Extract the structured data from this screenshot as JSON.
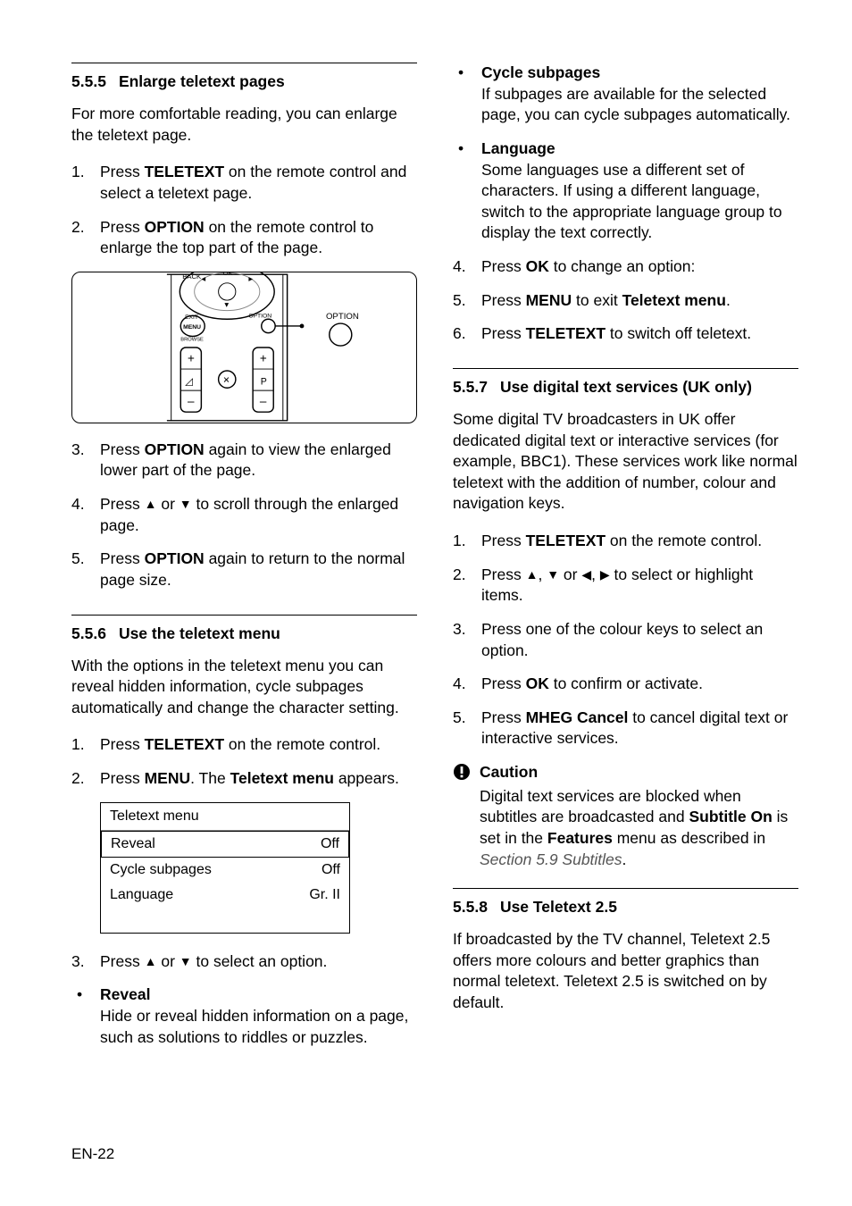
{
  "col_left": {
    "sec555": {
      "num": "5.5.5",
      "title": "Enlarge teletext pages",
      "intro": "For more comfortable reading, you can enlarge the teletext page.",
      "steps_a": [
        "Press <b>TELETEXT</b> on the remote control and select a teletext page.",
        "Press <b>OPTION</b> on the remote control to enlarge the top part of the page."
      ],
      "steps_b": [
        "Press <b>OPTION</b> again to view the enlarged lower part of the page.",
        "Press <span class='tri'>▲</span> or <span class='tri'>▼</span> to scroll through the enlarged page.",
        "Press <b>OPTION</b> again to return to the normal page size."
      ],
      "diagram": {
        "labels": {
          "back": "BACK",
          "ok": "OK",
          "exit": "EXIT",
          "menu": "MENU",
          "browse": "BROWSE",
          "option_small": "OPTION",
          "option_big": "OPTION",
          "p": "P",
          "mute": "✕"
        }
      }
    },
    "sec556": {
      "num": "5.5.6",
      "title": "Use the teletext menu",
      "intro": "With the options in the teletext menu you can reveal hidden information, cycle subpages automatically and change the character setting.",
      "steps": [
        "Press <b>TELETEXT</b> on the remote control.",
        "Press <b>MENU</b>. The <b>Teletext menu</b> appears."
      ],
      "menu": {
        "title": "Teletext menu",
        "rows": [
          {
            "label": "Reveal",
            "value": "Off",
            "selected": true
          },
          {
            "label": "Cycle subpages",
            "value": "Off",
            "selected": false
          },
          {
            "label": "Language",
            "value": "Gr. II",
            "selected": false
          }
        ]
      },
      "step3": "Press <span class='tri'>▲</span> or <span class='tri'>▼</span> to select an option.",
      "bullet_reveal": {
        "title": "Reveal",
        "body": "Hide or reveal hidden information on a page, such as solutions to riddles or puzzles."
      }
    }
  },
  "col_right": {
    "top_bullets": [
      {
        "title": "Cycle subpages",
        "body": "If subpages are available for the selected page, you can cycle subpages automatically."
      },
      {
        "title": "Language",
        "body": "Some languages use a different set of characters. If using a different language, switch to the appropriate language group to display the text correctly."
      }
    ],
    "top_steps": [
      "Press <b>OK</b> to change an option:",
      "Press <b>MENU</b> to exit <b>Teletext menu</b>.",
      "Press <b>TELETEXT</b> to switch off teletext."
    ],
    "sec557": {
      "num": "5.5.7",
      "title": "Use digital text services (UK only)",
      "intro": "Some digital TV broadcasters in UK offer dedicated digital text or interactive services (for example, BBC1). These services work like normal teletext with the addition of number, colour and navigation keys.",
      "steps": [
        "Press <b>TELETEXT</b> on the remote control.",
        "Press <span class='tri'>▲</span>, <span class='tri'>▼</span> or <span class='tri'>◀</span>, <span class='tri'>▶</span> to select or highlight items.",
        "Press one of the colour keys to select an option.",
        "Press <b>OK</b> to confirm or activate.",
        "Press <b>MHEG Cancel</b> to cancel digital text or interactive services."
      ],
      "caution": {
        "title": "Caution",
        "body": "Digital text services are blocked when subtitles are broadcasted and <b>Subtitle On</b> is set in the <b>Features</b> menu as described in <span class='italic'>Section 5.9 Subtitles</span>."
      }
    },
    "sec558": {
      "num": "5.5.8",
      "title": "Use Teletext 2.5",
      "intro": "If broadcasted by the TV channel, Teletext 2.5 offers more colours and better graphics than normal teletext. Teletext 2.5 is switched on by default."
    }
  },
  "footer": "EN-22"
}
